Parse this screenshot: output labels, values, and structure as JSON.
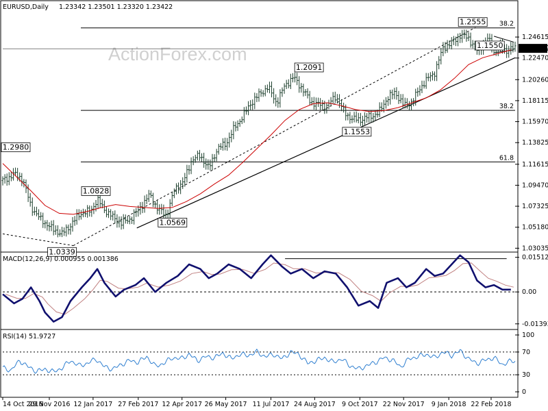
{
  "header": {
    "symbol": "EURUSD,Daily",
    "ohlc": "1.23342 1.23501 1.23320 1.23422"
  },
  "watermark": "ActionForex.com",
  "chart_data": [
    {
      "type": "line",
      "name": "price",
      "y_ticks": [
        "1.24615",
        "1.22470",
        "1.20260",
        "1.18115",
        "1.15970",
        "1.13825",
        "1.11615",
        "1.09470",
        "1.07325",
        "1.05180",
        "1.03035"
      ],
      "ylim": [
        1.0285,
        1.277
      ],
      "current_price_label": "1.23422",
      "current_price": 1.23422,
      "x_tick_labels": [
        "14 Oct 2016",
        "29 Nov 2016",
        "12 Jan 2017",
        "27 Feb 2017",
        "12 Apr 2017",
        "26 May 2017",
        "11 Jul 2017",
        "24 Aug 2017",
        "9 Oct 2017",
        "22 Nov 2017",
        "9 Jan 2018",
        "22 Feb 2018"
      ],
      "x_tick_values": [
        0,
        33,
        64,
        96,
        127,
        158,
        190,
        221,
        253,
        284,
        316,
        346
      ],
      "x_range": [
        0,
        363
      ],
      "annotations": [
        {
          "label": "1.2555",
          "x": 333,
          "y": 1.2555
        },
        {
          "label": "1.2091",
          "x": 217,
          "y": 1.2091
        },
        {
          "label": "1.1553",
          "x": 262,
          "y": 1.1553
        },
        {
          "label": "1.0828",
          "x": 66,
          "y": 1.0828
        },
        {
          "label": "1.0569",
          "x": 112,
          "y": 1.0569
        },
        {
          "label": "1.0339",
          "x": 42,
          "y": 1.0339
        },
        {
          "label": "1.2980",
          "x": 3,
          "y": 1.123
        },
        {
          "label": "1.1550",
          "x": 334,
          "y": 1.255
        }
      ],
      "fib_levels": [
        {
          "label": "38.2",
          "y": 1.2555
        },
        {
          "label": "38.2",
          "y": 1.1712
        },
        {
          "label": "61.8",
          "y": 1.1185
        }
      ],
      "close_series": {
        "x": [
          0,
          8,
          14,
          20,
          26,
          30,
          35,
          42,
          48,
          55,
          62,
          67,
          72,
          78,
          84,
          90,
          96,
          104,
          110,
          116,
          122,
          128,
          134,
          140,
          146,
          152,
          158,
          164,
          170,
          176,
          182,
          188,
          194,
          200,
          206,
          212,
          218,
          224,
          230,
          236,
          242,
          248,
          254,
          260,
          266,
          272,
          278,
          284,
          290,
          296,
          302,
          306,
          312,
          318,
          324,
          330,
          336,
          340,
          344,
          348,
          352,
          356,
          360
        ],
        "y": [
          1.0995,
          1.106,
          1.1015,
          1.073,
          1.061,
          1.0565,
          1.05,
          1.045,
          1.054,
          1.066,
          1.068,
          1.08,
          1.07,
          1.062,
          1.056,
          1.06,
          1.069,
          1.085,
          1.07,
          1.064,
          1.091,
          1.098,
          1.121,
          1.125,
          1.112,
          1.132,
          1.137,
          1.153,
          1.165,
          1.179,
          1.188,
          1.195,
          1.179,
          1.197,
          1.205,
          1.194,
          1.18,
          1.177,
          1.176,
          1.186,
          1.169,
          1.162,
          1.162,
          1.165,
          1.168,
          1.183,
          1.19,
          1.176,
          1.18,
          1.195,
          1.205,
          1.21,
          1.235,
          1.24,
          1.248,
          1.245,
          1.232,
          1.238,
          1.245,
          1.23,
          1.238,
          1.232,
          1.2342
        ]
      },
      "ma_series": {
        "x": [
          0,
          10,
          20,
          30,
          40,
          50,
          60,
          70,
          80,
          90,
          100,
          110,
          120,
          130,
          140,
          150,
          160,
          170,
          180,
          190,
          200,
          210,
          220,
          230,
          240,
          250,
          260,
          270,
          280,
          290,
          300,
          310,
          320,
          330,
          340,
          350,
          360
        ],
        "y": [
          1.117,
          1.103,
          1.089,
          1.074,
          1.066,
          1.065,
          1.068,
          1.072,
          1.075,
          1.073,
          1.072,
          1.071,
          1.072,
          1.078,
          1.086,
          1.096,
          1.105,
          1.118,
          1.132,
          1.146,
          1.161,
          1.172,
          1.178,
          1.179,
          1.176,
          1.172,
          1.17,
          1.171,
          1.174,
          1.179,
          1.184,
          1.192,
          1.204,
          1.218,
          1.225,
          1.229,
          1.233
        ]
      }
    },
    {
      "type": "line",
      "name": "macd",
      "header": "MACD(12,26,9) 0.000955 0.001386",
      "y_ticks": [
        "0.01512",
        "0.00",
        "-0.013938"
      ],
      "ylim": [
        -0.0155,
        0.0162
      ],
      "reference_level": 0.0145,
      "macd_series": {
        "x": [
          0,
          8,
          14,
          20,
          26,
          30,
          36,
          42,
          48,
          56,
          62,
          67,
          72,
          80,
          86,
          94,
          100,
          108,
          116,
          124,
          132,
          140,
          146,
          152,
          160,
          168,
          176,
          184,
          190,
          198,
          204,
          212,
          220,
          228,
          236,
          244,
          252,
          260,
          266,
          272,
          280,
          286,
          292,
          300,
          306,
          312,
          318,
          324,
          330,
          336,
          342,
          348,
          354,
          360
        ],
        "y": [
          -0.001,
          -0.005,
          -0.003,
          0.002,
          -0.004,
          -0.009,
          -0.013,
          -0.011,
          -0.004,
          0.002,
          0.006,
          0.01,
          0.004,
          -0.002,
          0.001,
          0.003,
          0.006,
          0.0,
          0.004,
          0.007,
          0.012,
          0.01,
          0.006,
          0.008,
          0.012,
          0.01,
          0.006,
          0.012,
          0.016,
          0.011,
          0.008,
          0.01,
          0.006,
          0.009,
          0.008,
          0.002,
          -0.006,
          -0.004,
          -0.007,
          0.004,
          0.006,
          0.002,
          0.004,
          0.01,
          0.007,
          0.008,
          0.012,
          0.016,
          0.013,
          0.005,
          0.002,
          0.003,
          0.001,
          0.001
        ]
      }
    },
    {
      "type": "line",
      "name": "rsi",
      "header": "RSI(14) 51.9727",
      "y_ticks": [
        "100",
        "70",
        "30",
        "0"
      ],
      "ylim": [
        0,
        100
      ],
      "levels": [
        70,
        30
      ],
      "rsi_series": {
        "x": [
          0,
          6,
          12,
          18,
          24,
          30,
          36,
          42,
          48,
          54,
          60,
          66,
          72,
          78,
          84,
          90,
          96,
          102,
          108,
          114,
          120,
          126,
          132,
          138,
          144,
          150,
          156,
          162,
          168,
          174,
          180,
          186,
          192,
          198,
          204,
          210,
          216,
          222,
          228,
          234,
          240,
          246,
          252,
          258,
          264,
          270,
          276,
          282,
          288,
          294,
          300,
          306,
          312,
          318,
          324,
          330,
          336,
          342,
          348,
          354,
          360
        ],
        "y": [
          42,
          38,
          55,
          44,
          36,
          40,
          35,
          42,
          55,
          46,
          50,
          58,
          44,
          40,
          48,
          55,
          52,
          62,
          45,
          50,
          60,
          58,
          66,
          55,
          62,
          60,
          68,
          58,
          66,
          64,
          70,
          62,
          66,
          58,
          70,
          66,
          50,
          55,
          60,
          52,
          58,
          46,
          40,
          46,
          52,
          60,
          56,
          44,
          58,
          62,
          66,
          60,
          70,
          64,
          72,
          58,
          50,
          56,
          60,
          48,
          54
        ]
      }
    }
  ]
}
